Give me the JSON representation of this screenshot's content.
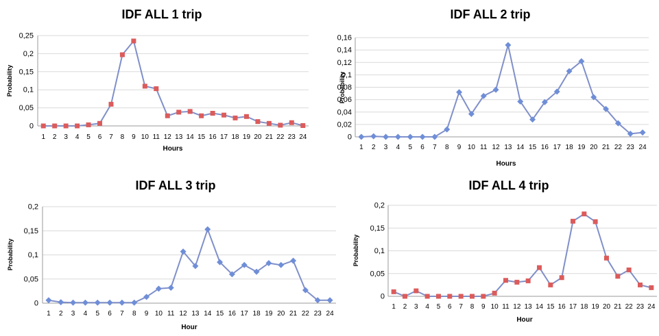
{
  "chart_data": [
    {
      "type": "line",
      "title": "IDF ALL 1 trip",
      "xlabel": "Hours",
      "ylabel": "Probability",
      "ylim": [
        0,
        0.25
      ],
      "yticks": [
        "0",
        "0,05",
        "0,1",
        "0,15",
        "0,2",
        "0,25"
      ],
      "grid": true,
      "categories": [
        "1",
        "2",
        "3",
        "4",
        "5",
        "6",
        "7",
        "8",
        "9",
        "10",
        "11",
        "12",
        "13",
        "14",
        "15",
        "16",
        "17",
        "18",
        "19",
        "20",
        "21",
        "22",
        "23",
        "24"
      ],
      "series": [
        {
          "values": [
            0.0,
            0.0,
            0.0,
            0.0,
            0.003,
            0.007,
            0.06,
            0.197,
            0.235,
            0.11,
            0.103,
            0.028,
            0.038,
            0.04,
            0.028,
            0.035,
            0.03,
            0.022,
            0.026,
            0.012,
            0.007,
            0.002,
            0.009,
            0.001
          ],
          "line_color": "#7f8fc9",
          "marker": "square",
          "marker_color": "#dc5b5b"
        }
      ]
    },
    {
      "type": "line",
      "title": "IDF ALL 2 trip",
      "xlabel": "Hours",
      "ylabel": "Probability",
      "ylim": [
        0,
        0.16
      ],
      "yticks": [
        "0",
        "0,02",
        "0,04",
        "0,06",
        "0,08",
        "0,1",
        "0,12",
        "0,14",
        "0,16"
      ],
      "grid": true,
      "categories": [
        "1",
        "2",
        "3",
        "4",
        "5",
        "6",
        "7",
        "8",
        "9",
        "10",
        "11",
        "12",
        "13",
        "14",
        "15",
        "16",
        "17",
        "18",
        "19",
        "20",
        "21",
        "22",
        "23",
        "24"
      ],
      "series": [
        {
          "values": [
            0.0,
            0.001,
            0.0,
            0.0,
            0.0,
            0.0,
            0.0,
            0.012,
            0.072,
            0.037,
            0.066,
            0.076,
            0.148,
            0.057,
            0.028,
            0.056,
            0.073,
            0.106,
            0.122,
            0.064,
            0.045,
            0.022,
            0.005,
            0.007
          ],
          "line_color": "#7f8fc9",
          "marker": "diamond",
          "marker_color": "#6f8ed8"
        }
      ]
    },
    {
      "type": "line",
      "title": "IDF ALL 3 trip",
      "xlabel": "Hour",
      "ylabel": "Probability",
      "ylim": [
        0,
        0.2
      ],
      "yticks": [
        "0",
        "0,05",
        "0,1",
        "0,15",
        "0,2"
      ],
      "grid": true,
      "categories": [
        "1",
        "2",
        "3",
        "4",
        "5",
        "6",
        "7",
        "8",
        "9",
        "10",
        "11",
        "12",
        "13",
        "14",
        "15",
        "16",
        "17",
        "18",
        "19",
        "20",
        "21",
        "22",
        "23",
        "24"
      ],
      "series": [
        {
          "values": [
            0.006,
            0.002,
            0.001,
            0.001,
            0.001,
            0.001,
            0.001,
            0.001,
            0.013,
            0.03,
            0.032,
            0.107,
            0.077,
            0.153,
            0.085,
            0.06,
            0.079,
            0.065,
            0.083,
            0.079,
            0.088,
            0.027,
            0.006,
            0.006
          ],
          "line_color": "#7f8fc9",
          "marker": "diamond",
          "marker_color": "#6f8ed8"
        }
      ]
    },
    {
      "type": "line",
      "title": "IDF ALL 4 trip",
      "xlabel": "Hour",
      "ylabel": "Probability",
      "ylim": [
        0,
        0.2
      ],
      "yticks": [
        "0",
        "0,05",
        "0,1",
        "0,15",
        "0,2"
      ],
      "grid": true,
      "categories": [
        "1",
        "2",
        "3",
        "4",
        "5",
        "6",
        "7",
        "8",
        "9",
        "10",
        "11",
        "12",
        "13",
        "14",
        "15",
        "16",
        "17",
        "18",
        "19",
        "20",
        "21",
        "22",
        "23",
        "24"
      ],
      "series": [
        {
          "values": [
            0.01,
            0.0,
            0.012,
            0.0,
            0.0,
            0.0,
            0.0,
            0.0,
            0.0,
            0.007,
            0.035,
            0.031,
            0.034,
            0.063,
            0.025,
            0.041,
            0.165,
            0.181,
            0.164,
            0.084,
            0.044,
            0.058,
            0.025,
            0.019
          ],
          "line_color": "#7f8fc9",
          "marker": "square",
          "marker_color": "#dc5b5b"
        }
      ]
    }
  ]
}
